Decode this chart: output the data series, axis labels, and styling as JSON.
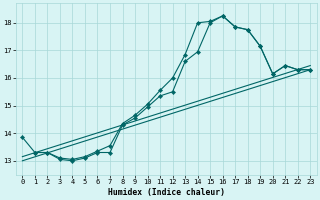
{
  "xlabel": "Humidex (Indice chaleur)",
  "background_color": "#d8f4f4",
  "grid_color": "#a8d8d8",
  "line_color": "#006666",
  "xlim": [
    -0.5,
    23.5
  ],
  "ylim": [
    12.5,
    18.7
  ],
  "yticks": [
    13,
    14,
    15,
    16,
    17,
    18
  ],
  "xticks": [
    0,
    1,
    2,
    3,
    4,
    5,
    6,
    7,
    8,
    9,
    10,
    11,
    12,
    13,
    14,
    15,
    16,
    17,
    18,
    19,
    20,
    21,
    22,
    23
  ],
  "series1_x": [
    0,
    1,
    2,
    3,
    4,
    5,
    6,
    7,
    8,
    9,
    10,
    11,
    12,
    13,
    14,
    15,
    16,
    17,
    18,
    19,
    20,
    21,
    22,
    23
  ],
  "series1_y": [
    13.85,
    13.3,
    13.3,
    13.1,
    13.05,
    13.15,
    13.35,
    13.55,
    14.35,
    14.65,
    15.05,
    15.55,
    16.0,
    16.85,
    18.0,
    18.05,
    18.25,
    17.85,
    17.75,
    17.15,
    16.15,
    16.45,
    16.3,
    16.3
  ],
  "series2_x": [
    1,
    2,
    3,
    4,
    5,
    6,
    7,
    8,
    9,
    10,
    11,
    12,
    13,
    14,
    15,
    16,
    17,
    18,
    19,
    20,
    21,
    22,
    23
  ],
  "series2_y": [
    13.3,
    13.3,
    13.05,
    13.0,
    13.1,
    13.3,
    13.3,
    14.3,
    14.55,
    14.95,
    15.35,
    15.5,
    16.6,
    16.95,
    18.0,
    18.25,
    17.85,
    17.75,
    17.15,
    16.15,
    16.45,
    16.3,
    16.3
  ],
  "line3_x": [
    0,
    23
  ],
  "line3_y": [
    13.0,
    16.3
  ],
  "line4_x": [
    0,
    23
  ],
  "line4_y": [
    13.15,
    16.45
  ]
}
